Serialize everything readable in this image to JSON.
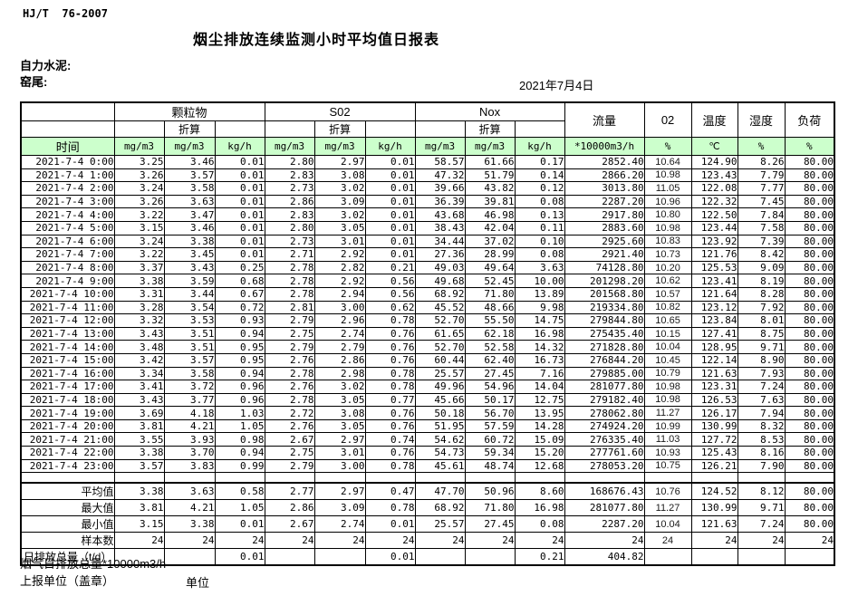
{
  "page": {
    "standard": "HJ/T  76-2007",
    "title": "烟尘排放连续监测小时平均值日报表",
    "company": "自力水泥:",
    "section": "窑尾:",
    "date": "2021年7月4日"
  },
  "colors": {
    "header_bg": "#ccffcc",
    "border": "#000000",
    "text": "#000000"
  },
  "table": {
    "header": {
      "time_label": "时间",
      "groups": [
        {
          "label": "颗粒物",
          "converted": "折算"
        },
        {
          "label": "S02",
          "converted": "折算"
        },
        {
          "label": "Nox",
          "converted": "折算"
        }
      ],
      "singles": [
        {
          "label": "流量"
        },
        {
          "label": "02"
        },
        {
          "label": "温度"
        },
        {
          "label": "湿度"
        },
        {
          "label": "负荷"
        }
      ],
      "units": [
        "mg/m3",
        "mg/m3",
        "kg/h",
        "mg/m3",
        "mg/m3",
        "kg/h",
        "mg/m3",
        "mg/m3",
        "kg/h",
        "*10000m3/h",
        "%",
        "℃",
        "%",
        "%"
      ]
    },
    "rows": [
      {
        "time": "2021-7-4 0:00",
        "values": [
          "3.25",
          "3.46",
          "0.01",
          "2.80",
          "2.97",
          "0.01",
          "58.57",
          "61.66",
          "0.17",
          "2852.40",
          "10.64",
          "124.90",
          "8.26",
          "80.00"
        ]
      },
      {
        "time": "2021-7-4 1:00",
        "values": [
          "3.26",
          "3.57",
          "0.01",
          "2.83",
          "3.08",
          "0.01",
          "47.32",
          "51.79",
          "0.14",
          "2866.20",
          "10.98",
          "123.43",
          "7.79",
          "80.00"
        ]
      },
      {
        "time": "2021-7-4 2:00",
        "values": [
          "3.24",
          "3.58",
          "0.01",
          "2.73",
          "3.02",
          "0.01",
          "39.66",
          "43.82",
          "0.12",
          "3013.80",
          "11.05",
          "122.08",
          "7.77",
          "80.00"
        ]
      },
      {
        "time": "2021-7-4 3:00",
        "values": [
          "3.26",
          "3.63",
          "0.01",
          "2.86",
          "3.09",
          "0.01",
          "36.39",
          "39.81",
          "0.08",
          "2287.20",
          "10.96",
          "122.32",
          "7.45",
          "80.00"
        ]
      },
      {
        "time": "2021-7-4 4:00",
        "values": [
          "3.22",
          "3.47",
          "0.01",
          "2.83",
          "3.02",
          "0.01",
          "43.68",
          "46.98",
          "0.13",
          "2917.80",
          "10.80",
          "122.50",
          "7.84",
          "80.00"
        ]
      },
      {
        "time": "2021-7-4 5:00",
        "values": [
          "3.15",
          "3.46",
          "0.01",
          "2.80",
          "3.05",
          "0.01",
          "38.43",
          "42.04",
          "0.11",
          "2883.60",
          "10.98",
          "123.44",
          "7.58",
          "80.00"
        ]
      },
      {
        "time": "2021-7-4 6:00",
        "values": [
          "3.24",
          "3.38",
          "0.01",
          "2.73",
          "3.01",
          "0.01",
          "34.44",
          "37.02",
          "0.10",
          "2925.60",
          "10.83",
          "123.92",
          "7.39",
          "80.00"
        ]
      },
      {
        "time": "2021-7-4 7:00",
        "values": [
          "3.22",
          "3.45",
          "0.01",
          "2.71",
          "2.92",
          "0.01",
          "27.36",
          "28.99",
          "0.08",
          "2921.40",
          "10.73",
          "121.76",
          "8.42",
          "80.00"
        ]
      },
      {
        "time": "2021-7-4 8:00",
        "values": [
          "3.37",
          "3.43",
          "0.25",
          "2.78",
          "2.82",
          "0.21",
          "49.03",
          "49.64",
          "3.63",
          "74128.80",
          "10.20",
          "125.53",
          "9.09",
          "80.00"
        ]
      },
      {
        "time": "2021-7-4 9:00",
        "values": [
          "3.38",
          "3.59",
          "0.68",
          "2.78",
          "2.92",
          "0.56",
          "49.68",
          "52.45",
          "10.00",
          "201298.20",
          "10.62",
          "123.41",
          "8.19",
          "80.00"
        ]
      },
      {
        "time": "2021-7-4 10:00",
        "values": [
          "3.31",
          "3.44",
          "0.67",
          "2.78",
          "2.94",
          "0.56",
          "68.92",
          "71.80",
          "13.89",
          "201568.80",
          "10.57",
          "121.64",
          "8.28",
          "80.00"
        ]
      },
      {
        "time": "2021-7-4 11:00",
        "values": [
          "3.28",
          "3.54",
          "0.72",
          "2.81",
          "3.00",
          "0.62",
          "45.52",
          "48.66",
          "9.98",
          "219334.80",
          "10.82",
          "123.12",
          "7.92",
          "80.00"
        ]
      },
      {
        "time": "2021-7-4 12:00",
        "values": [
          "3.32",
          "3.53",
          "0.93",
          "2.79",
          "2.96",
          "0.78",
          "52.70",
          "55.50",
          "14.75",
          "279844.80",
          "10.65",
          "123.84",
          "8.01",
          "80.00"
        ]
      },
      {
        "time": "2021-7-4 13:00",
        "values": [
          "3.43",
          "3.51",
          "0.94",
          "2.75",
          "2.74",
          "0.76",
          "61.65",
          "62.18",
          "16.98",
          "275435.40",
          "10.15",
          "127.41",
          "8.75",
          "80.00"
        ]
      },
      {
        "time": "2021-7-4 14:00",
        "values": [
          "3.48",
          "3.51",
          "0.95",
          "2.79",
          "2.79",
          "0.76",
          "52.70",
          "52.58",
          "14.32",
          "271828.80",
          "10.04",
          "128.95",
          "9.71",
          "80.00"
        ]
      },
      {
        "time": "2021-7-4 15:00",
        "values": [
          "3.42",
          "3.57",
          "0.95",
          "2.76",
          "2.86",
          "0.76",
          "60.44",
          "62.40",
          "16.73",
          "276844.20",
          "10.45",
          "122.14",
          "8.90",
          "80.00"
        ]
      },
      {
        "time": "2021-7-4 16:00",
        "values": [
          "3.34",
          "3.58",
          "0.94",
          "2.78",
          "2.98",
          "0.78",
          "25.57",
          "27.45",
          "7.16",
          "279885.00",
          "10.79",
          "121.63",
          "7.93",
          "80.00"
        ]
      },
      {
        "time": "2021-7-4 17:00",
        "values": [
          "3.41",
          "3.72",
          "0.96",
          "2.76",
          "3.02",
          "0.78",
          "49.96",
          "54.96",
          "14.04",
          "281077.80",
          "10.98",
          "123.31",
          "7.24",
          "80.00"
        ]
      },
      {
        "time": "2021-7-4 18:00",
        "values": [
          "3.43",
          "3.77",
          "0.96",
          "2.78",
          "3.05",
          "0.77",
          "45.66",
          "50.17",
          "12.75",
          "279182.40",
          "10.98",
          "126.53",
          "7.63",
          "80.00"
        ]
      },
      {
        "time": "2021-7-4 19:00",
        "values": [
          "3.69",
          "4.18",
          "1.03",
          "2.72",
          "3.08",
          "0.76",
          "50.18",
          "56.70",
          "13.95",
          "278062.80",
          "11.27",
          "126.17",
          "7.94",
          "80.00"
        ]
      },
      {
        "time": "2021-7-4 20:00",
        "values": [
          "3.81",
          "4.21",
          "1.05",
          "2.76",
          "3.05",
          "0.76",
          "51.95",
          "57.59",
          "14.28",
          "274924.20",
          "10.99",
          "130.99",
          "8.32",
          "80.00"
        ]
      },
      {
        "time": "2021-7-4 21:00",
        "values": [
          "3.55",
          "3.93",
          "0.98",
          "2.67",
          "2.97",
          "0.74",
          "54.62",
          "60.72",
          "15.09",
          "276335.40",
          "11.03",
          "127.72",
          "8.53",
          "80.00"
        ]
      },
      {
        "time": "2021-7-4 22:00",
        "values": [
          "3.38",
          "3.70",
          "0.94",
          "2.75",
          "3.01",
          "0.76",
          "54.73",
          "59.34",
          "15.20",
          "277761.60",
          "10.93",
          "125.43",
          "8.16",
          "80.00"
        ]
      },
      {
        "time": "2021-7-4 23:00",
        "values": [
          "3.57",
          "3.83",
          "0.99",
          "2.79",
          "3.00",
          "0.78",
          "45.61",
          "48.74",
          "12.68",
          "278053.20",
          "10.75",
          "126.21",
          "7.90",
          "80.00"
        ]
      }
    ],
    "summary": [
      {
        "label": "平均值",
        "values": [
          "3.38",
          "3.63",
          "0.58",
          "2.77",
          "2.97",
          "0.47",
          "47.70",
          "50.96",
          "8.60",
          "168676.43",
          "10.76",
          "124.52",
          "8.12",
          "80.00"
        ]
      },
      {
        "label": "最大值",
        "values": [
          "3.81",
          "4.21",
          "1.05",
          "2.86",
          "3.09",
          "0.78",
          "68.92",
          "71.80",
          "16.98",
          "281077.80",
          "11.27",
          "130.99",
          "9.71",
          "80.00"
        ]
      },
      {
        "label": "最小值",
        "values": [
          "3.15",
          "3.38",
          "0.01",
          "2.67",
          "2.74",
          "0.01",
          "25.57",
          "27.45",
          "0.08",
          "2287.20",
          "10.04",
          "121.63",
          "7.24",
          "80.00"
        ]
      },
      {
        "label": "样本数",
        "values": [
          "24",
          "24",
          "24",
          "24",
          "24",
          "24",
          "24",
          "24",
          "24",
          "24",
          "24",
          "24",
          "24",
          "24"
        ]
      },
      {
        "label": "日排放总量（t/d）",
        "values": [
          "",
          "",
          "0.01",
          "",
          "",
          "0.01",
          "",
          "",
          "0.21",
          "404.82",
          "",
          "",
          "",
          ""
        ]
      }
    ]
  },
  "footer": {
    "note": "烟气日排放总量*10000m3/h",
    "report_unit_label": "上报单位（盖章）",
    "unit_label": "单位"
  }
}
